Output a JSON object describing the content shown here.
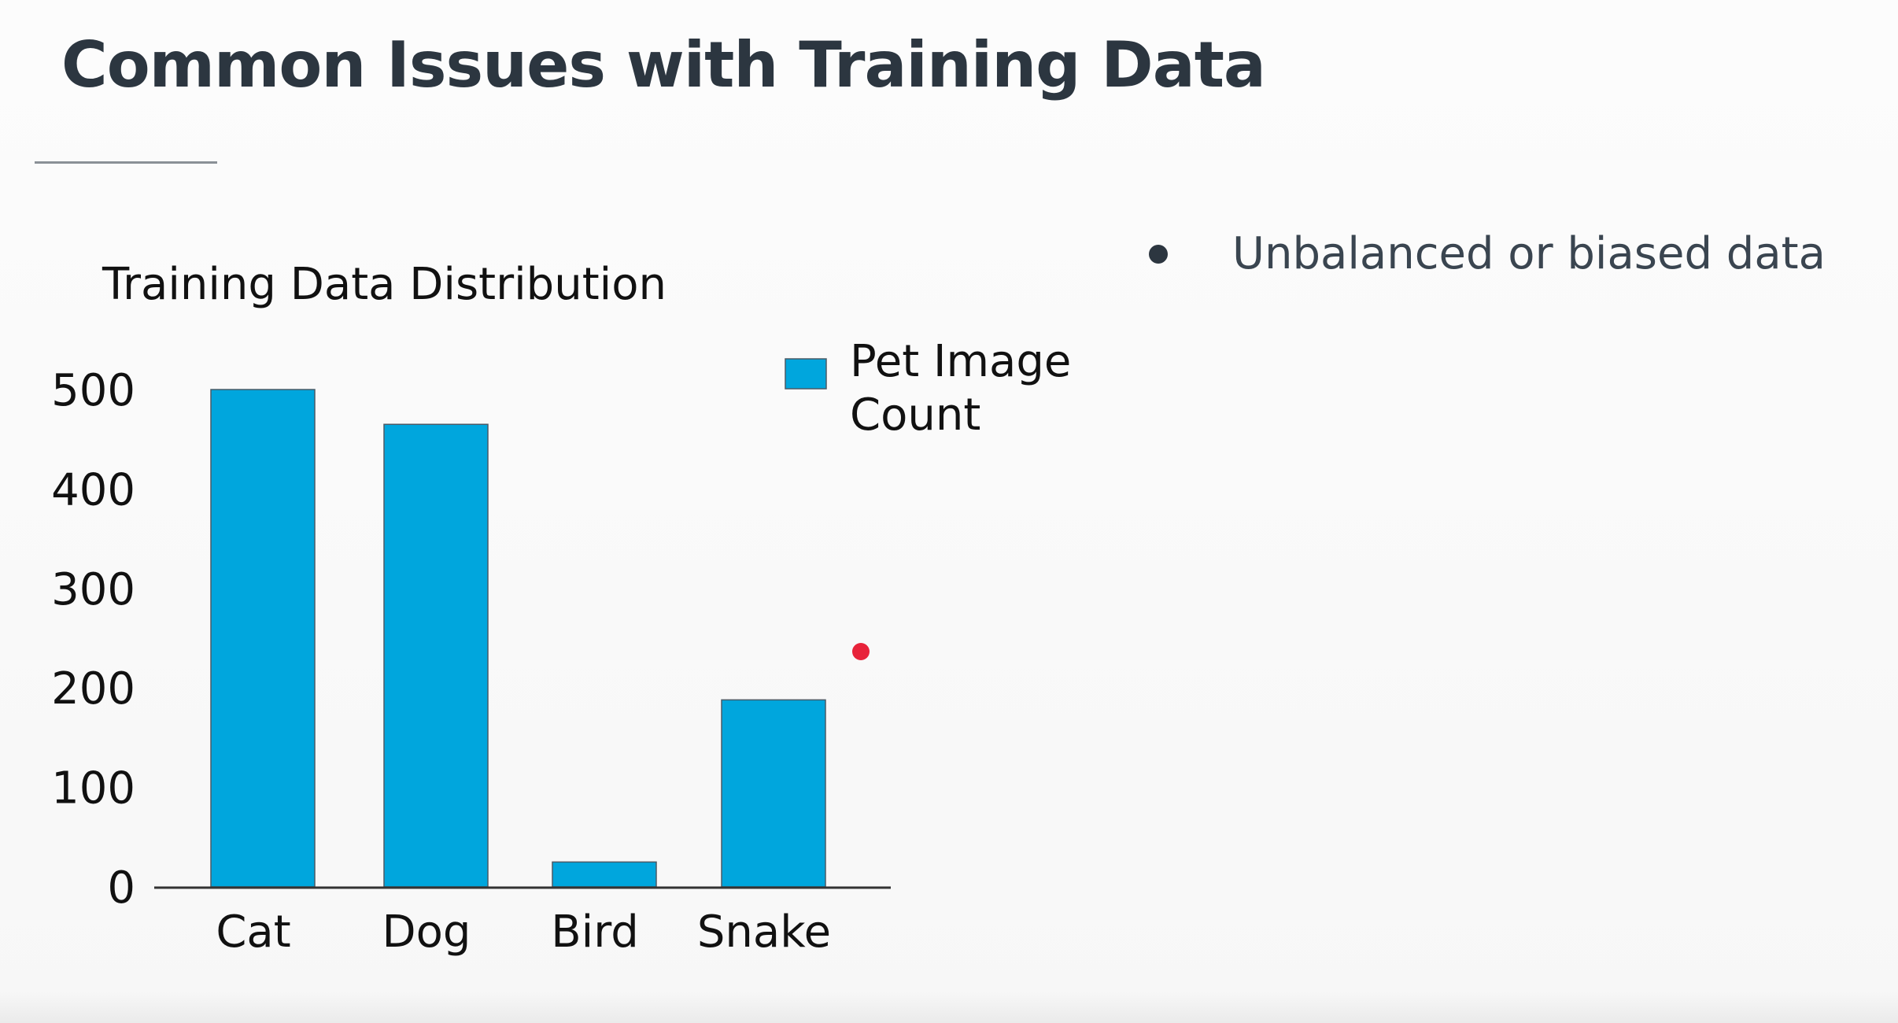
{
  "slide": {
    "title": "Common Issues with Training Data",
    "bullets": [
      "Unbalanced or biased data"
    ]
  },
  "colors": {
    "bar": "#00a6dd",
    "title": "#2c3640",
    "laser_pointer": "#e8233a"
  },
  "chart_data": {
    "type": "bar",
    "title": "Training Data Distribution",
    "categories": [
      "Cat",
      "Dog",
      "Bird",
      "Snake"
    ],
    "series": [
      {
        "name": "Pet Image Count",
        "values": [
          500,
          465,
          25,
          188
        ]
      }
    ],
    "ylim": [
      0,
      500
    ],
    "yticks": [
      0,
      100,
      200,
      300,
      400,
      500
    ],
    "xlabel": "",
    "ylabel": "",
    "grid": false,
    "legend": "top-right"
  }
}
